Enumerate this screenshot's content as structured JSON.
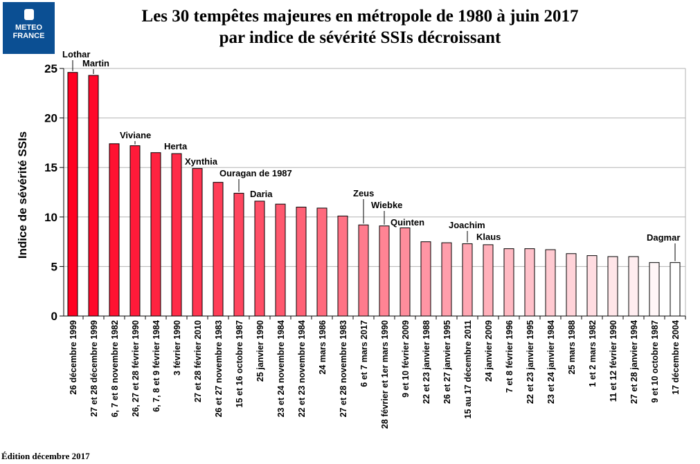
{
  "logo": {
    "line1": "METEO",
    "line2": "FRANCE"
  },
  "footer": "Édition décembre 2017",
  "chart_data": {
    "type": "bar",
    "title": "Les 30 tempêtes majeures en métropole de 1980 à juin 2017",
    "subtitle": "par indice de sévérité SSIs décroissant",
    "xlabel": "",
    "ylabel": "Indice de sévérité SSIs",
    "ylim": [
      0,
      25
    ],
    "yticks": [
      0,
      5,
      10,
      15,
      20,
      25
    ],
    "grid": true,
    "color_start": "#ff0022",
    "color_end": "#ffffff",
    "categories": [
      "26 décembre 1999",
      "27 et 28 décembre 1999",
      "6, 7 et 8 novembre 1982",
      "26, 27 et 28 février 1990",
      "6, 7, 8 et 9 février 1984",
      "3 février 1990",
      "27 et 28 février 2010",
      "26 et 27 novembre 1983",
      "15 et 16 octobre 1987",
      "25 janvier 1990",
      "23 et 24 novembre 1984",
      "22 et 23 novembre 1984",
      "24 mars 1986",
      "27 et 28 novembre 1983",
      "6 et 7 mars 2017",
      "28 février et 1er mars 1990",
      "9 et 10 février 2009",
      "22 et 23 janvier 1988",
      "26 et 27 janvier 1995",
      "15 au 17 décembre 2011",
      "24 janvier 2009",
      "7 et 8 février 1996",
      "22 et 23 janvier 1995",
      "23 et 24 janvier 1984",
      "25 mars 1988",
      "1 et 2 mars 1982",
      "11 et 12 février 1990",
      "27 et 28 janvier 1994",
      "9 et 10 octobre 1987",
      "17 décembre 2004"
    ],
    "values": [
      24.6,
      24.3,
      17.4,
      17.2,
      16.5,
      16.4,
      14.9,
      13.5,
      12.4,
      11.6,
      11.3,
      11.0,
      10.9,
      10.1,
      9.2,
      9.1,
      8.9,
      7.5,
      7.4,
      7.3,
      7.2,
      6.8,
      6.8,
      6.7,
      6.3,
      6.1,
      6.0,
      6.0,
      5.4,
      5.4
    ],
    "annotations": [
      {
        "index": 0,
        "text": "Lothar"
      },
      {
        "index": 1,
        "text": "Martin"
      },
      {
        "index": 3,
        "text": "Viviane"
      },
      {
        "index": 5,
        "text": "Herta"
      },
      {
        "index": 6,
        "text": "Xynthia"
      },
      {
        "index": 8,
        "text": "Ouragan de 1987"
      },
      {
        "index": 9,
        "text": "Daria"
      },
      {
        "index": 14,
        "text": "Zeus"
      },
      {
        "index": 15,
        "text": "Wiebke"
      },
      {
        "index": 16,
        "text": "Quinten"
      },
      {
        "index": 19,
        "text": "Joachim"
      },
      {
        "index": 20,
        "text": "Klaus"
      },
      {
        "index": 29,
        "text": "Dagmar"
      }
    ]
  }
}
